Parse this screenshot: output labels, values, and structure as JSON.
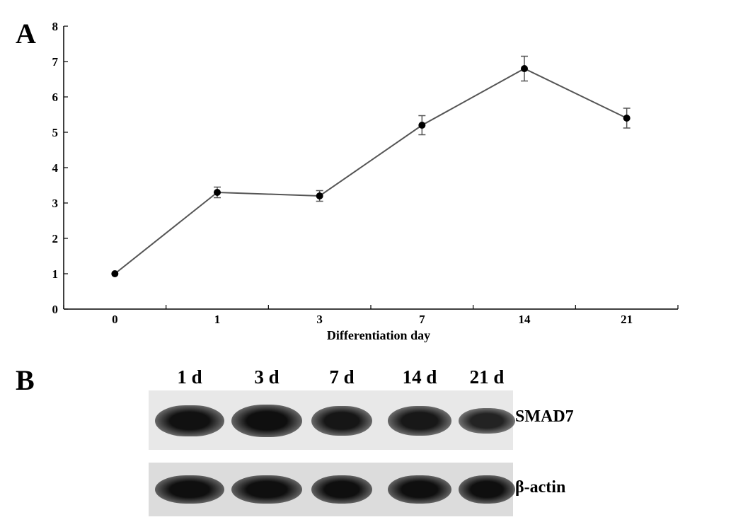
{
  "panels": {
    "a": "A",
    "b": "B"
  },
  "chart_data": {
    "type": "line",
    "title": "",
    "xlabel": "Differentiation day",
    "ylabel": "",
    "categories": [
      "0",
      "1",
      "3",
      "7",
      "14",
      "21"
    ],
    "values": [
      1.0,
      3.3,
      3.2,
      5.2,
      6.8,
      5.4
    ],
    "error": [
      0.0,
      0.15,
      0.15,
      0.27,
      0.35,
      0.28
    ],
    "ylim": [
      0,
      8
    ],
    "yticks": [
      "0",
      "1",
      "2",
      "3",
      "4",
      "5",
      "6",
      "7",
      "8"
    ],
    "grid": false,
    "line_color": "#555555",
    "marker_color": "#000000"
  },
  "blot": {
    "lanes": [
      "1 d",
      "3 d",
      "7 d",
      "14 d",
      "21 d"
    ],
    "bands": [
      {
        "name": "SMAD7",
        "intensities": [
          0.95,
          1.0,
          0.85,
          0.8,
          0.55
        ]
      },
      {
        "name": "β-actin",
        "intensities": [
          1.0,
          1.0,
          1.0,
          1.0,
          1.0
        ]
      }
    ]
  }
}
